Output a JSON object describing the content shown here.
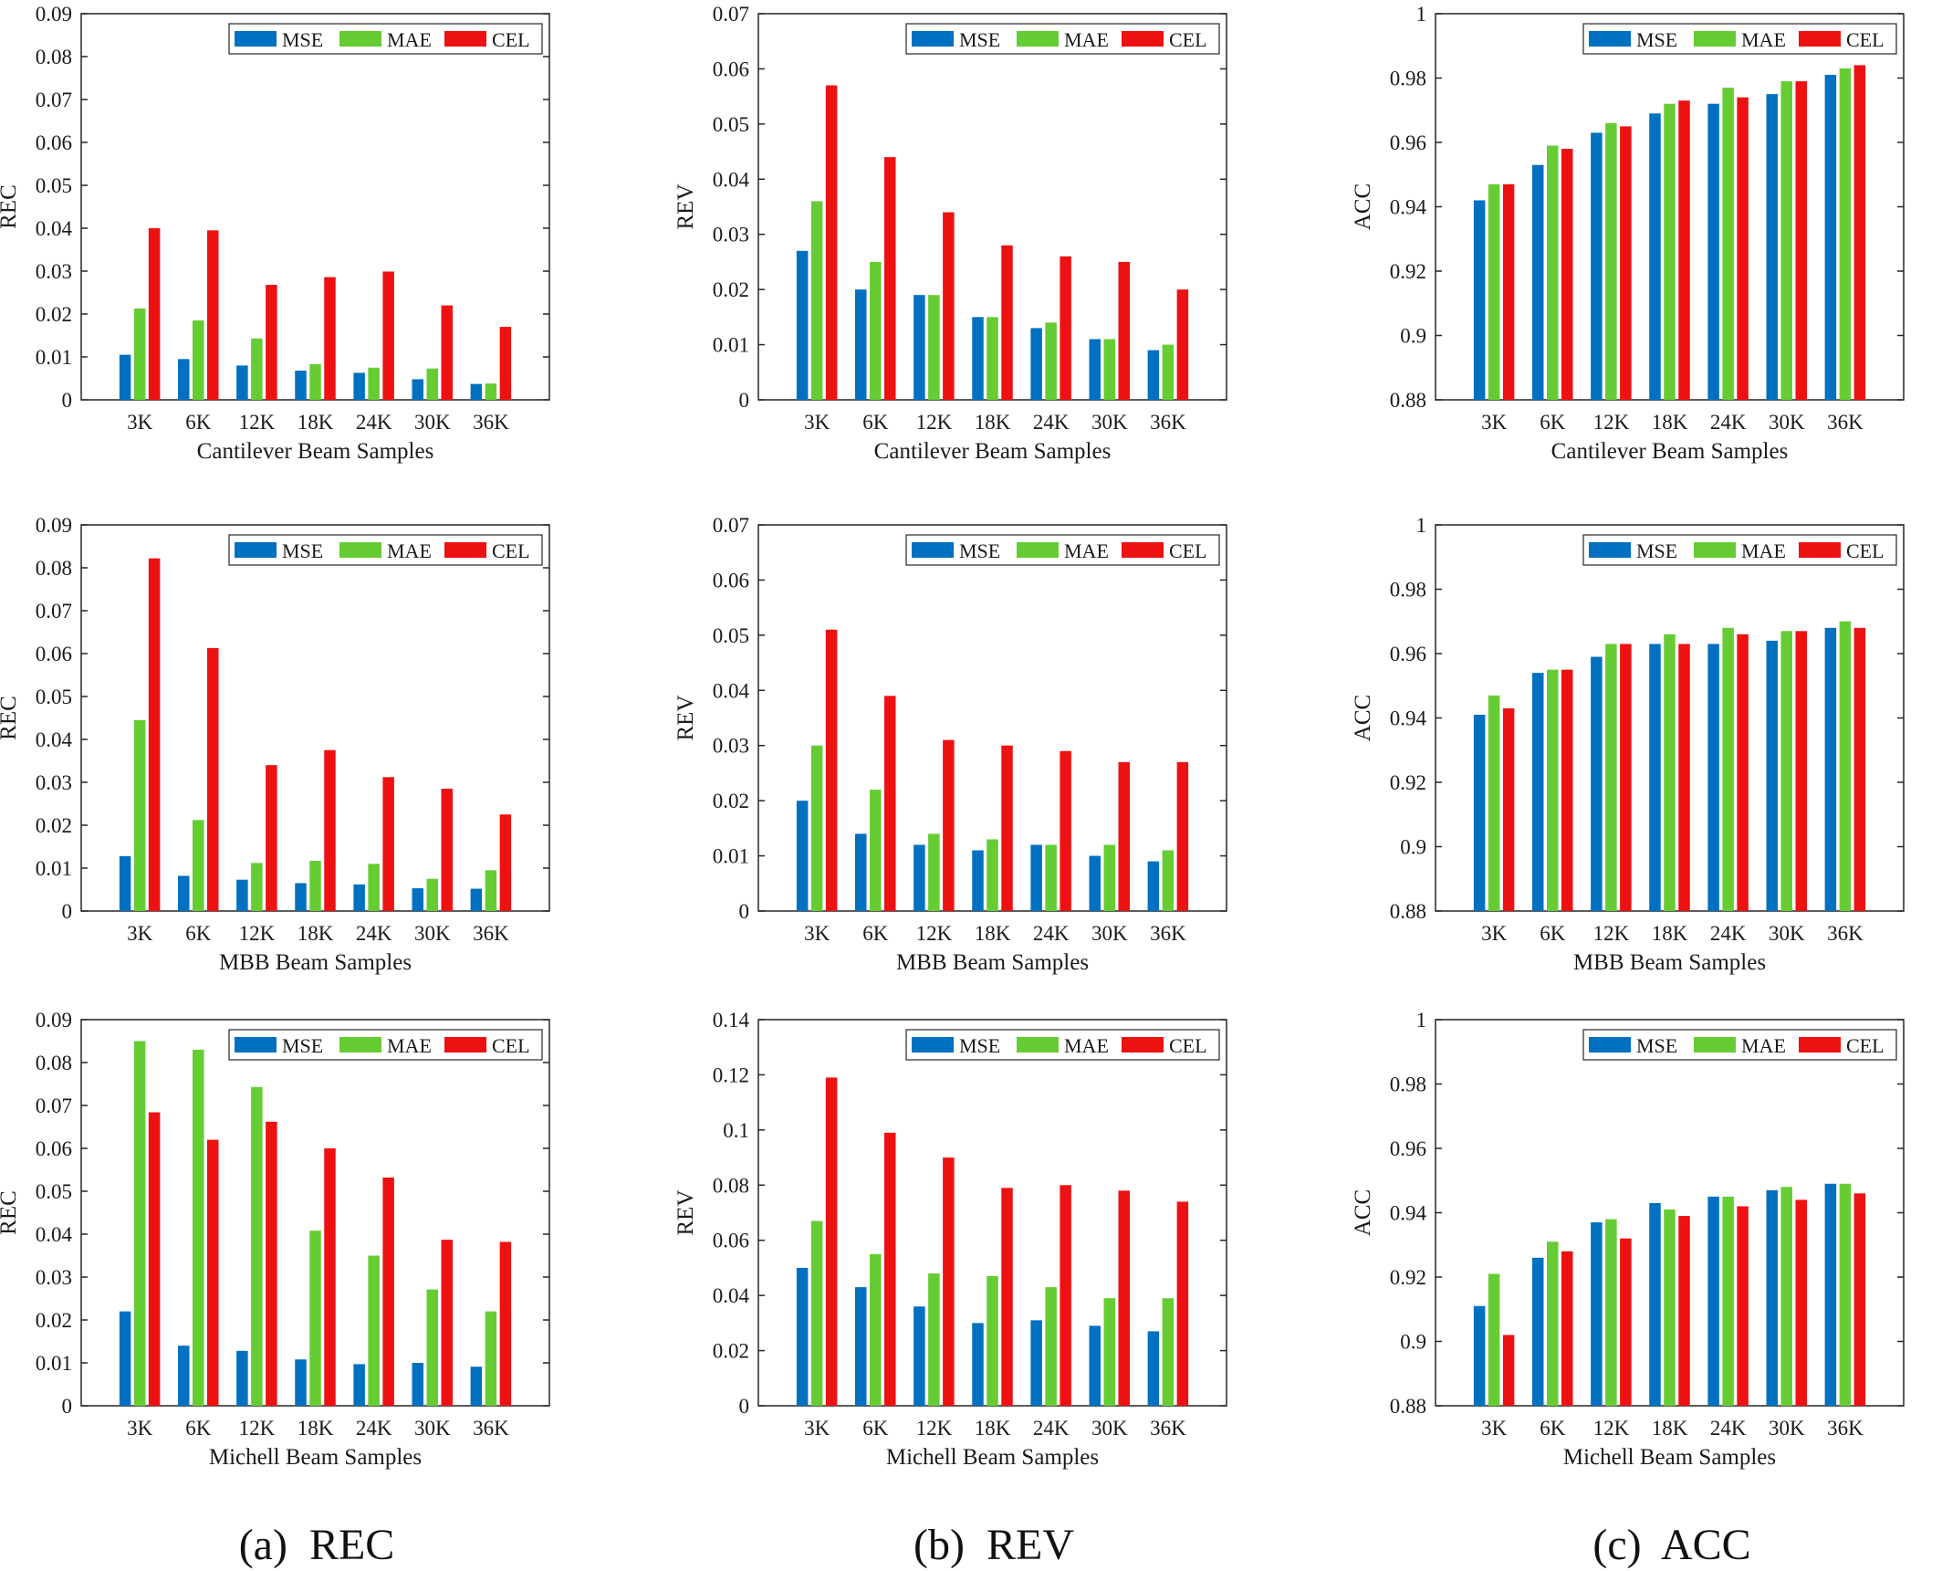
{
  "captions": [
    "(a)  REC",
    "(b)  REV",
    "(c)  ACC"
  ],
  "legend_colors": {
    "MSE": "#0070C0",
    "MAE": "#66CC33",
    "CEL": "#EE1111"
  },
  "chart_data": [
    {
      "type": "bar",
      "categories": [
        "3K",
        "6K",
        "12K",
        "18K",
        "24K",
        "30K",
        "36K"
      ],
      "xlabel": "Cantilever Beam Samples",
      "ylabel": "REC",
      "ylim": [
        0,
        0.09
      ],
      "yticks": [
        "0",
        "0.01",
        "0.02",
        "0.03",
        "0.04",
        "0.05",
        "0.06",
        "0.07",
        "0.08",
        "0.09"
      ],
      "series": [
        {
          "name": "MSE",
          "values": [
            0.0105,
            0.0095,
            0.008,
            0.0068,
            0.0063,
            0.0048,
            0.0037
          ]
        },
        {
          "name": "MAE",
          "values": [
            0.0213,
            0.0185,
            0.0143,
            0.0083,
            0.0075,
            0.0073,
            0.0038
          ]
        },
        {
          "name": "CEL",
          "values": [
            0.04,
            0.0395,
            0.0268,
            0.0286,
            0.0299,
            0.022,
            0.017
          ]
        }
      ],
      "legend": "top-right"
    },
    {
      "type": "bar",
      "categories": [
        "3K",
        "6K",
        "12K",
        "18K",
        "24K",
        "30K",
        "36K"
      ],
      "xlabel": "Cantilever Beam Samples",
      "ylabel": "REV",
      "ylim": [
        0,
        0.07
      ],
      "yticks": [
        "0",
        "0.01",
        "0.02",
        "0.03",
        "0.04",
        "0.05",
        "0.06",
        "0.07"
      ],
      "series": [
        {
          "name": "MSE",
          "values": [
            0.027,
            0.02,
            0.019,
            0.015,
            0.013,
            0.011,
            0.009
          ]
        },
        {
          "name": "MAE",
          "values": [
            0.036,
            0.025,
            0.019,
            0.015,
            0.014,
            0.011,
            0.01
          ]
        },
        {
          "name": "CEL",
          "values": [
            0.057,
            0.044,
            0.034,
            0.028,
            0.026,
            0.025,
            0.02
          ]
        }
      ],
      "legend": "top-right"
    },
    {
      "type": "bar",
      "categories": [
        "3K",
        "6K",
        "12K",
        "18K",
        "24K",
        "30K",
        "36K"
      ],
      "xlabel": "Cantilever Beam Samples",
      "ylabel": "ACC",
      "ylim": [
        0.88,
        1
      ],
      "yticks": [
        "0.88",
        "0.9",
        "0.92",
        "0.94",
        "0.96",
        "0.98",
        "1"
      ],
      "series": [
        {
          "name": "MSE",
          "values": [
            0.942,
            0.953,
            0.963,
            0.969,
            0.972,
            0.975,
            0.981
          ]
        },
        {
          "name": "MAE",
          "values": [
            0.947,
            0.959,
            0.966,
            0.972,
            0.977,
            0.979,
            0.983
          ]
        },
        {
          "name": "CEL",
          "values": [
            0.947,
            0.958,
            0.965,
            0.973,
            0.974,
            0.979,
            0.984
          ]
        }
      ],
      "legend": "top-right"
    },
    {
      "type": "bar",
      "categories": [
        "3K",
        "6K",
        "12K",
        "18K",
        "24K",
        "30K",
        "36K"
      ],
      "xlabel": "MBB Beam Samples",
      "ylabel": "REC",
      "ylim": [
        0,
        0.09
      ],
      "yticks": [
        "0",
        "0.01",
        "0.02",
        "0.03",
        "0.04",
        "0.05",
        "0.06",
        "0.07",
        "0.08",
        "0.09"
      ],
      "series": [
        {
          "name": "MSE",
          "values": [
            0.0128,
            0.0082,
            0.0073,
            0.0065,
            0.0062,
            0.0053,
            0.0052
          ]
        },
        {
          "name": "MAE",
          "values": [
            0.0445,
            0.0212,
            0.0112,
            0.0117,
            0.011,
            0.0075,
            0.0095
          ]
        },
        {
          "name": "CEL",
          "values": [
            0.0822,
            0.0613,
            0.034,
            0.0375,
            0.0312,
            0.0285,
            0.0225
          ]
        }
      ],
      "legend": "top-right"
    },
    {
      "type": "bar",
      "categories": [
        "3K",
        "6K",
        "12K",
        "18K",
        "24K",
        "30K",
        "36K"
      ],
      "xlabel": "MBB Beam Samples",
      "ylabel": "REV",
      "ylim": [
        0,
        0.07
      ],
      "yticks": [
        "0",
        "0.01",
        "0.02",
        "0.03",
        "0.04",
        "0.05",
        "0.06",
        "0.07"
      ],
      "series": [
        {
          "name": "MSE",
          "values": [
            0.02,
            0.014,
            0.012,
            0.011,
            0.012,
            0.01,
            0.009
          ]
        },
        {
          "name": "MAE",
          "values": [
            0.03,
            0.022,
            0.014,
            0.013,
            0.012,
            0.012,
            0.011
          ]
        },
        {
          "name": "CEL",
          "values": [
            0.051,
            0.039,
            0.031,
            0.03,
            0.029,
            0.027,
            0.027
          ]
        }
      ],
      "legend": "top-right"
    },
    {
      "type": "bar",
      "categories": [
        "3K",
        "6K",
        "12K",
        "18K",
        "24K",
        "30K",
        "36K"
      ],
      "xlabel": "MBB Beam Samples",
      "ylabel": "ACC",
      "ylim": [
        0.88,
        1
      ],
      "yticks": [
        "0.88",
        "0.9",
        "0.92",
        "0.94",
        "0.96",
        "0.98",
        "1"
      ],
      "series": [
        {
          "name": "MSE",
          "values": [
            0.941,
            0.954,
            0.959,
            0.963,
            0.963,
            0.964,
            0.968
          ]
        },
        {
          "name": "MAE",
          "values": [
            0.947,
            0.955,
            0.963,
            0.966,
            0.968,
            0.967,
            0.97
          ]
        },
        {
          "name": "CEL",
          "values": [
            0.943,
            0.955,
            0.963,
            0.963,
            0.966,
            0.967,
            0.968
          ]
        }
      ],
      "legend": "top-right"
    },
    {
      "type": "bar",
      "categories": [
        "3K",
        "6K",
        "12K",
        "18K",
        "24K",
        "30K",
        "36K"
      ],
      "xlabel": "Michell Beam Samples",
      "ylabel": "REC",
      "ylim": [
        0,
        0.09
      ],
      "yticks": [
        "0",
        "0.01",
        "0.02",
        "0.03",
        "0.04",
        "0.05",
        "0.06",
        "0.07",
        "0.08",
        "0.09"
      ],
      "series": [
        {
          "name": "MSE",
          "values": [
            0.022,
            0.014,
            0.0128,
            0.0108,
            0.0097,
            0.01,
            0.0091
          ]
        },
        {
          "name": "MAE",
          "values": [
            0.085,
            0.083,
            0.0743,
            0.0408,
            0.035,
            0.0271,
            0.022
          ]
        },
        {
          "name": "CEL",
          "values": [
            0.0684,
            0.062,
            0.0662,
            0.06,
            0.0532,
            0.0387,
            0.0382
          ]
        }
      ],
      "legend": "top-right"
    },
    {
      "type": "bar",
      "categories": [
        "3K",
        "6K",
        "12K",
        "18K",
        "24K",
        "30K",
        "36K"
      ],
      "xlabel": "Michell Beam Samples",
      "ylabel": "REV",
      "ylim": [
        0,
        0.14
      ],
      "yticks": [
        "0",
        "0.02",
        "0.04",
        "0.06",
        "0.08",
        "0.1",
        "0.12",
        "0.14"
      ],
      "series": [
        {
          "name": "MSE",
          "values": [
            0.05,
            0.043,
            0.036,
            0.03,
            0.031,
            0.029,
            0.027
          ]
        },
        {
          "name": "MAE",
          "values": [
            0.067,
            0.055,
            0.048,
            0.047,
            0.043,
            0.039,
            0.039
          ]
        },
        {
          "name": "CEL",
          "values": [
            0.119,
            0.099,
            0.09,
            0.079,
            0.08,
            0.078,
            0.074
          ]
        }
      ],
      "legend": "top-right"
    },
    {
      "type": "bar",
      "categories": [
        "3K",
        "6K",
        "12K",
        "18K",
        "24K",
        "30K",
        "36K"
      ],
      "xlabel": "Michell Beam Samples",
      "ylabel": "ACC",
      "ylim": [
        0.88,
        1
      ],
      "yticks": [
        "0.88",
        "0.9",
        "0.92",
        "0.94",
        "0.96",
        "0.98",
        "1"
      ],
      "series": [
        {
          "name": "MSE",
          "values": [
            0.911,
            0.926,
            0.937,
            0.943,
            0.945,
            0.947,
            0.949
          ]
        },
        {
          "name": "MAE",
          "values": [
            0.921,
            0.931,
            0.938,
            0.941,
            0.945,
            0.948,
            0.949
          ]
        },
        {
          "name": "CEL",
          "values": [
            0.902,
            0.928,
            0.932,
            0.939,
            0.942,
            0.944,
            0.946
          ]
        }
      ],
      "legend": "top-right"
    }
  ]
}
